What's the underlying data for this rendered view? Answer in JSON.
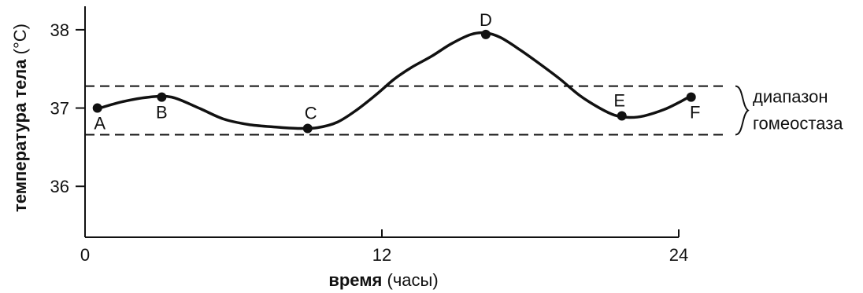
{
  "chart_data": {
    "type": "line",
    "xlabel_bold": "время",
    "xlabel_rest": " (часы)",
    "ylabel_bold": "температура тела",
    "ylabel_rest": " (°C)",
    "xticks": [
      0,
      12,
      24
    ],
    "yticks": [
      36,
      37,
      38
    ],
    "xlim": [
      0,
      24
    ],
    "ylim": [
      35.35,
      38.3
    ],
    "curve": [
      [
        0.5,
        36.99
      ],
      [
        1.5,
        37.08
      ],
      [
        2.6,
        37.14
      ],
      [
        3.5,
        37.14
      ],
      [
        4.6,
        37.0
      ],
      [
        5.6,
        36.86
      ],
      [
        6.6,
        36.79
      ],
      [
        7.6,
        36.76
      ],
      [
        8.6,
        36.74
      ],
      [
        9.4,
        36.75
      ],
      [
        10.2,
        36.82
      ],
      [
        11.0,
        36.98
      ],
      [
        11.8,
        37.18
      ],
      [
        12.5,
        37.37
      ],
      [
        13.2,
        37.52
      ],
      [
        14.0,
        37.66
      ],
      [
        14.8,
        37.82
      ],
      [
        15.6,
        37.94
      ],
      [
        16.2,
        37.96
      ],
      [
        16.8,
        37.9
      ],
      [
        17.6,
        37.74
      ],
      [
        18.4,
        37.56
      ],
      [
        19.2,
        37.37
      ],
      [
        20.0,
        37.16
      ],
      [
        20.8,
        37.0
      ],
      [
        21.4,
        36.91
      ],
      [
        22.0,
        36.88
      ],
      [
        22.6,
        36.9
      ],
      [
        23.4,
        36.98
      ],
      [
        24.0,
        37.07
      ],
      [
        24.4,
        37.14
      ]
    ],
    "points": [
      {
        "label": "A",
        "x": 0.5,
        "y": 37.0
      },
      {
        "label": "B",
        "x": 3.1,
        "y": 37.14
      },
      {
        "label": "C",
        "x": 9.0,
        "y": 36.74
      },
      {
        "label": "D",
        "x": 16.2,
        "y": 37.94
      },
      {
        "label": "E",
        "x": 21.7,
        "y": 36.9
      },
      {
        "label": "F",
        "x": 24.5,
        "y": 37.14
      }
    ],
    "homeostasis_range": {
      "lower": 36.66,
      "upper": 37.28,
      "label_line1": "диапазон",
      "label_line2": "гомеостаза"
    },
    "grid": false
  }
}
